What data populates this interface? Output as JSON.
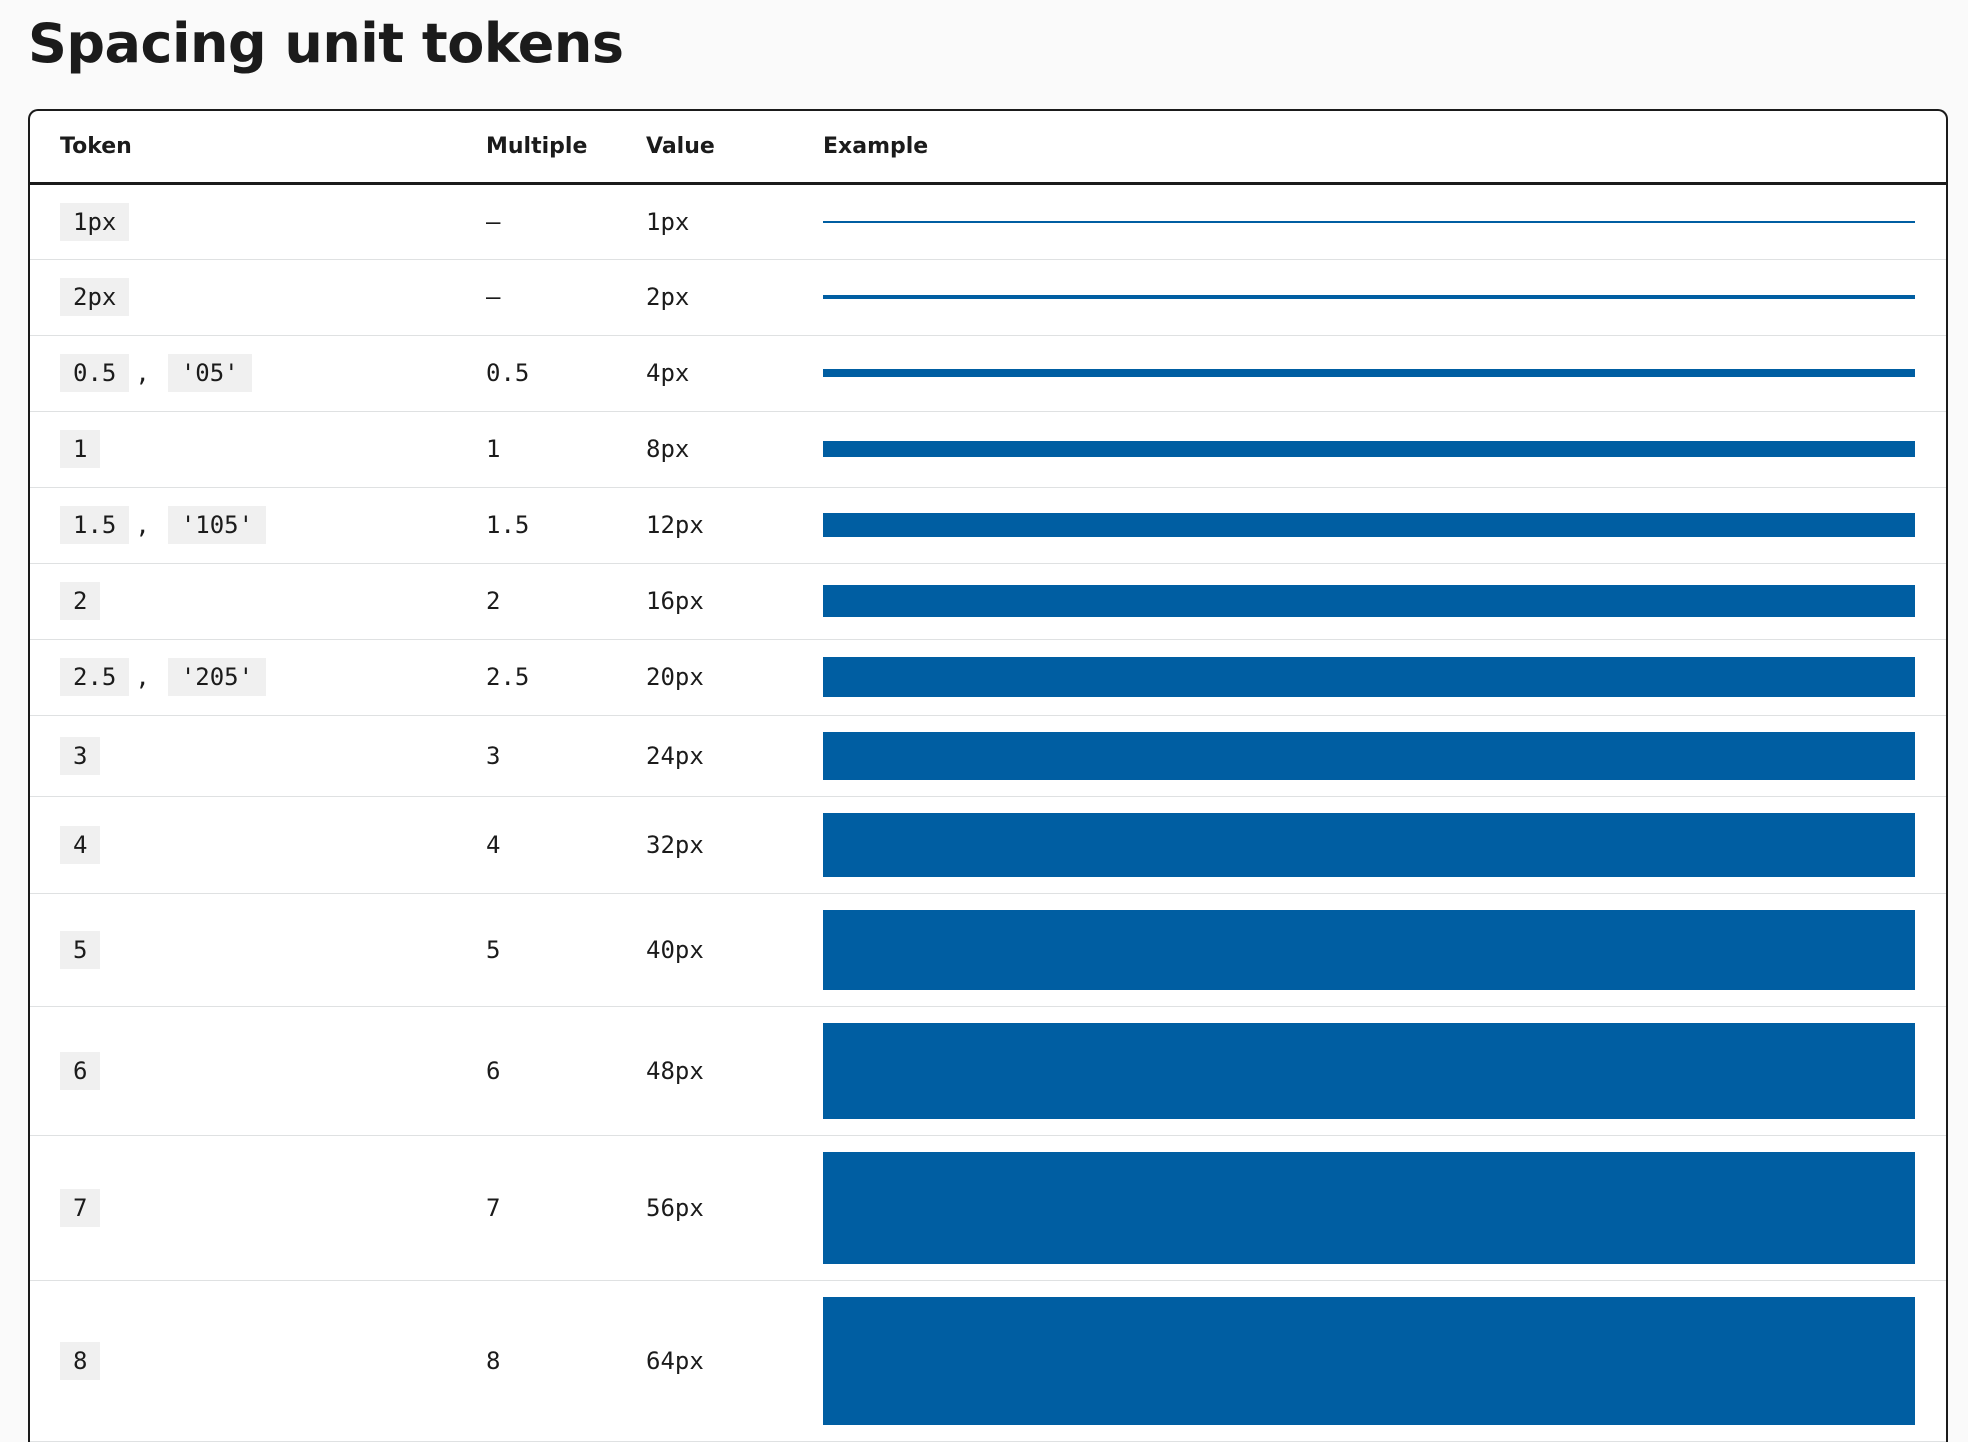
{
  "title": "Spacing unit tokens",
  "table": {
    "columns": [
      "Token",
      "Multiple",
      "Value",
      "Example"
    ],
    "separator": ",",
    "rows": [
      {
        "tokens": [
          "1px"
        ],
        "multiple": "–",
        "value": "1px"
      },
      {
        "tokens": [
          "2px"
        ],
        "multiple": "–",
        "value": "2px"
      },
      {
        "tokens": [
          "0.5",
          "'05'"
        ],
        "multiple": "0.5",
        "value": "4px"
      },
      {
        "tokens": [
          "1"
        ],
        "multiple": "1",
        "value": "8px"
      },
      {
        "tokens": [
          "1.5",
          "'105'"
        ],
        "multiple": "1.5",
        "value": "12px"
      },
      {
        "tokens": [
          "2"
        ],
        "multiple": "2",
        "value": "16px"
      },
      {
        "tokens": [
          "2.5",
          "'205'"
        ],
        "multiple": "2.5",
        "value": "20px"
      },
      {
        "tokens": [
          "3"
        ],
        "multiple": "3",
        "value": "24px"
      },
      {
        "tokens": [
          "4"
        ],
        "multiple": "4",
        "value": "32px"
      },
      {
        "tokens": [
          "5"
        ],
        "multiple": "5",
        "value": "40px"
      },
      {
        "tokens": [
          "6"
        ],
        "multiple": "6",
        "value": "48px"
      },
      {
        "tokens": [
          "7"
        ],
        "multiple": "7",
        "value": "56px"
      },
      {
        "tokens": [
          "8"
        ],
        "multiple": "8",
        "value": "64px"
      }
    ]
  }
}
